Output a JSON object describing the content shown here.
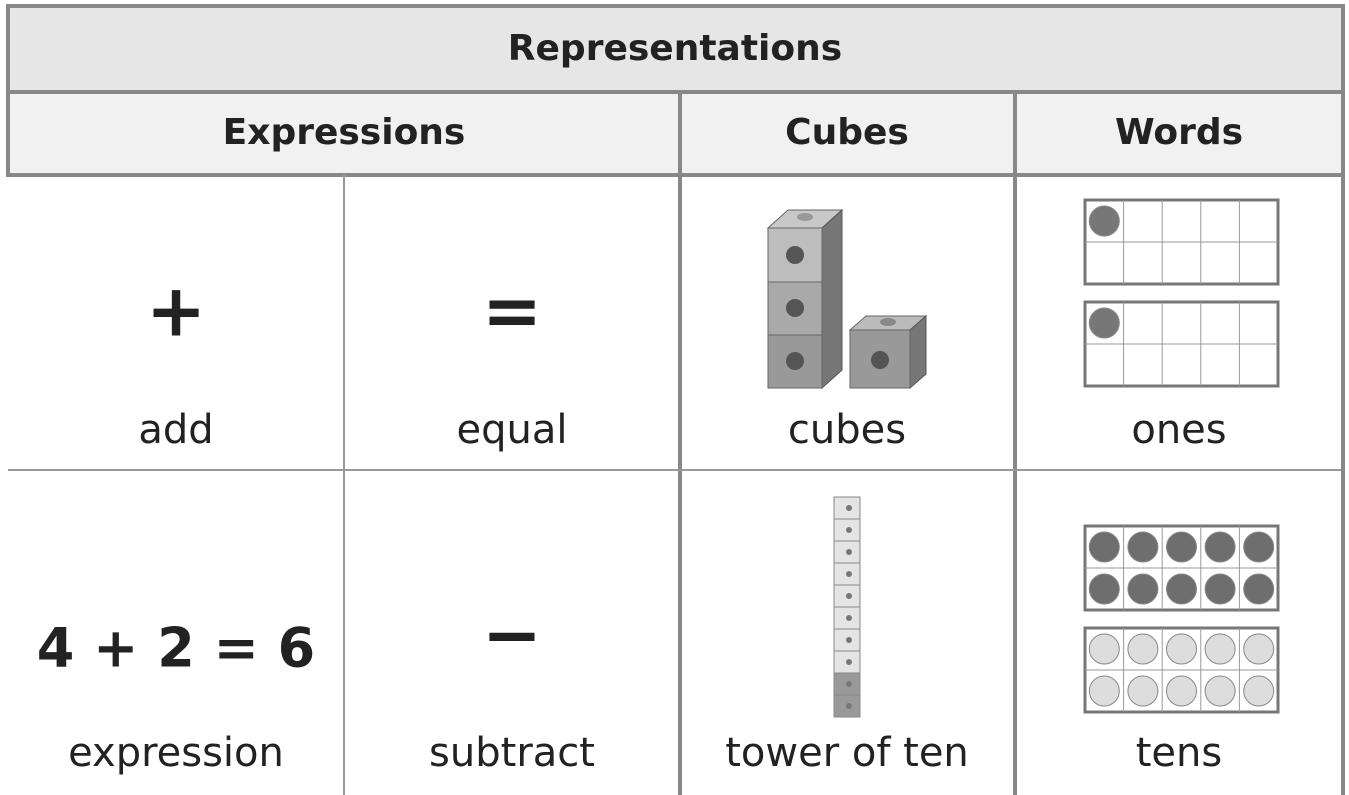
{
  "title": "Representations",
  "headers": [
    "Expressions",
    "Cubes",
    "Words"
  ],
  "rows": [
    {
      "cells": [
        {
          "symbol": "+",
          "label": "add"
        },
        {
          "symbol": "=",
          "label": "equal"
        },
        {
          "label": "cubes"
        },
        {
          "label": "ones"
        }
      ]
    },
    {
      "cells": [
        {
          "symbol": "4 + 2 = 6",
          "label": "expression"
        },
        {
          "symbol": "−",
          "label": "subtract"
        },
        {
          "label": "tower of ten"
        },
        {
          "label": "tens"
        }
      ]
    }
  ]
}
